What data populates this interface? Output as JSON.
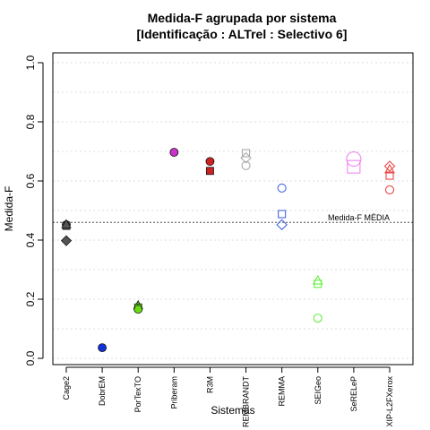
{
  "chart_data": {
    "type": "scatter",
    "title": "Medida-F agrupada por sistema",
    "subtitle": "[Identificação : ALTrel : Selectivo 6]",
    "xlabel": "Sistemas",
    "ylabel": "Medida-F",
    "ylim": [
      0,
      1
    ],
    "yticks": [
      "0.0",
      "0.2",
      "0.4",
      "0.6",
      "0.8",
      "1.0"
    ],
    "grid": true,
    "reference_line": {
      "value": 0.46,
      "label": "Medida-F MÉDIA"
    },
    "categories": [
      "Cage2",
      "DobrEM",
      "PorTexTO",
      "Priberam",
      "R3M",
      "REMBRANDT",
      "REMMA",
      "SEIGeo",
      "SeRELeP",
      "XIP-L2FXerox"
    ],
    "points": [
      {
        "category": "Cage2",
        "y": 0.452,
        "shape": "circle",
        "color": "#555555",
        "filled": true
      },
      {
        "category": "Cage2",
        "y": 0.448,
        "shape": "square",
        "color": "#555555",
        "filled": true
      },
      {
        "category": "Cage2",
        "y": 0.452,
        "shape": "triangle",
        "color": "#555555",
        "filled": true
      },
      {
        "category": "Cage2",
        "y": 0.398,
        "shape": "diamond",
        "color": "#555555",
        "filled": true
      },
      {
        "category": "DobrEM",
        "y": 0.036,
        "shape": "circle",
        "color": "#1133dd",
        "filled": true
      },
      {
        "category": "PorTexTO",
        "y": 0.178,
        "shape": "triangle",
        "color": "#66dd11",
        "filled": true
      },
      {
        "category": "PorTexTO",
        "y": 0.172,
        "shape": "square",
        "color": "#66dd11",
        "filled": true
      },
      {
        "category": "PorTexTO",
        "y": 0.166,
        "shape": "circle",
        "color": "#66dd11",
        "filled": true
      },
      {
        "category": "Priberam",
        "y": 0.697,
        "shape": "circle",
        "color": "#cc33cc",
        "filled": true
      },
      {
        "category": "R3M",
        "y": 0.666,
        "shape": "circle",
        "color": "#cc2222",
        "filled": true
      },
      {
        "category": "R3M",
        "y": 0.634,
        "shape": "square",
        "color": "#cc2222",
        "filled": true
      },
      {
        "category": "REMBRANDT",
        "y": 0.694,
        "shape": "square",
        "color": "#aaaaaa",
        "filled": false
      },
      {
        "category": "REMBRANDT",
        "y": 0.678,
        "shape": "diamond",
        "color": "#aaaaaa",
        "filled": false
      },
      {
        "category": "REMBRANDT",
        "y": 0.652,
        "shape": "circle",
        "color": "#aaaaaa",
        "filled": false
      },
      {
        "category": "REMMA",
        "y": 0.576,
        "shape": "circle",
        "color": "#4466dd",
        "filled": false
      },
      {
        "category": "REMMA",
        "y": 0.488,
        "shape": "square",
        "color": "#4466dd",
        "filled": false
      },
      {
        "category": "REMMA",
        "y": 0.452,
        "shape": "diamond",
        "color": "#4466dd",
        "filled": false
      },
      {
        "category": "SEIGeo",
        "y": 0.262,
        "shape": "triangle",
        "color": "#66ee44",
        "filled": false
      },
      {
        "category": "SEIGeo",
        "y": 0.252,
        "shape": "square",
        "color": "#66ee44",
        "filled": false
      },
      {
        "category": "SEIGeo",
        "y": 0.136,
        "shape": "circle",
        "color": "#66ee44",
        "filled": false
      },
      {
        "category": "SeRELeP",
        "y": 0.674,
        "shape": "big-circle",
        "color": "#ee88ee",
        "filled": false
      },
      {
        "category": "SeRELeP",
        "y": 0.648,
        "shape": "big-square",
        "color": "#ee88ee",
        "filled": false
      },
      {
        "category": "XIP-L2FXerox",
        "y": 0.65,
        "shape": "diamond",
        "color": "#ee4444",
        "filled": false
      },
      {
        "category": "XIP-L2FXerox",
        "y": 0.638,
        "shape": "triangle",
        "color": "#ee4444",
        "filled": false
      },
      {
        "category": "XIP-L2FXerox",
        "y": 0.618,
        "shape": "square",
        "color": "#ee4444",
        "filled": false
      },
      {
        "category": "XIP-L2FXerox",
        "y": 0.57,
        "shape": "circle",
        "color": "#ee4444",
        "filled": false
      }
    ]
  }
}
